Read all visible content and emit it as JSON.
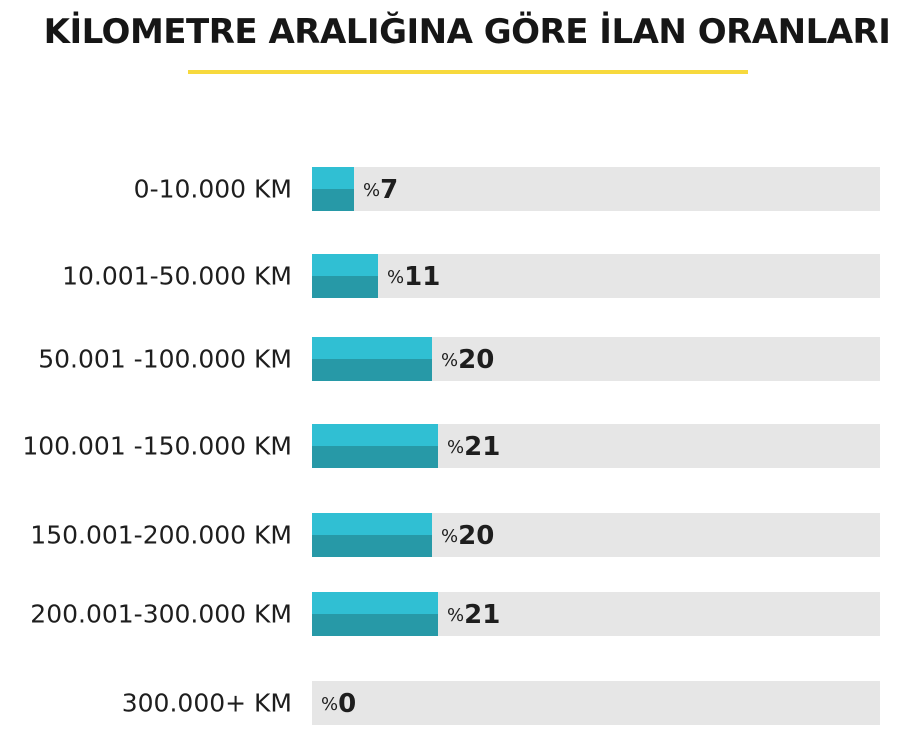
{
  "chart_data": {
    "type": "bar",
    "orientation": "horizontal",
    "title": "KİLOMETRE ARALIĞINA GÖRE İLAN ORANLARI",
    "categories": [
      "0-10.000 KM",
      "10.001-50.000 KM",
      "50.001 -100.000 KM",
      "100.001 -150.000 KM",
      "150.001-200.000 KM",
      "200.001-300.000 KM",
      "300.000+ KM"
    ],
    "values": [
      7,
      11,
      20,
      21,
      20,
      21,
      0
    ],
    "value_prefix": "%",
    "xlim": [
      0,
      100
    ],
    "grid": false,
    "legend": "none",
    "colors": {
      "bar_top": "#30bfd3",
      "bar_bottom": "#2799a7",
      "track": "#e6e6e6",
      "title_underline": "#f7d93d",
      "text": "#1e1e1e"
    }
  }
}
